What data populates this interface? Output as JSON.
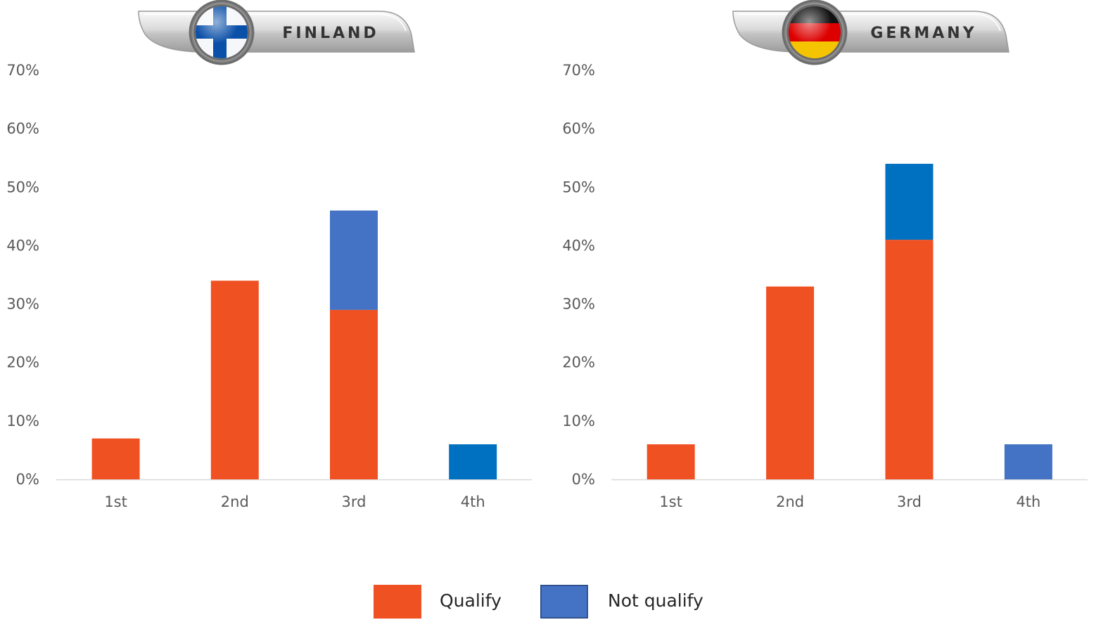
{
  "colors": {
    "qualify": "#f05123",
    "not_qualify_light": "#4472c4",
    "not_qualify_dark": "#0070c0",
    "axis": "#d9d9d9"
  },
  "chart_data": [
    {
      "type": "bar",
      "stacked": true,
      "badge_title": "FINLAND",
      "flag_icon": "finland-flag-icon",
      "categories": [
        "1st",
        "2nd",
        "3rd",
        "4th"
      ],
      "yticks": [
        "0%",
        "10%",
        "20%",
        "30%",
        "40%",
        "50%",
        "60%",
        "70%"
      ],
      "ylim": [
        0,
        70
      ],
      "series": [
        {
          "name": "Qualify",
          "values": [
            7,
            34,
            29,
            0
          ]
        },
        {
          "name": "Not qualify",
          "values": [
            0,
            0,
            17,
            6
          ]
        }
      ],
      "not_qualify_colors": [
        "#4472c4",
        "#4472c4",
        "#4472c4",
        "#0070c0"
      ],
      "grid": false
    },
    {
      "type": "bar",
      "stacked": true,
      "badge_title": "GERMANY",
      "flag_icon": "germany-flag-icon",
      "categories": [
        "1st",
        "2nd",
        "3rd",
        "4th"
      ],
      "yticks": [
        "0%",
        "10%",
        "20%",
        "30%",
        "40%",
        "50%",
        "60%",
        "70%"
      ],
      "ylim": [
        0,
        70
      ],
      "series": [
        {
          "name": "Qualify",
          "values": [
            6,
            33,
            41,
            0
          ]
        },
        {
          "name": "Not qualify",
          "values": [
            0,
            0,
            13,
            6
          ]
        }
      ],
      "not_qualify_colors": [
        "#0070c0",
        "#0070c0",
        "#0070c0",
        "#4472c4"
      ],
      "grid": false
    }
  ],
  "legend": {
    "position": "bottom",
    "items": [
      {
        "label": "Qualify",
        "color": "#f05123"
      },
      {
        "label": "Not qualify",
        "color": "#4472c4"
      }
    ]
  }
}
